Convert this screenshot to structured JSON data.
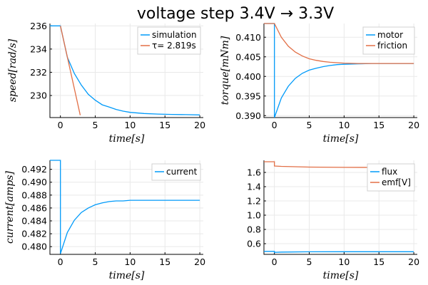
{
  "figure": {
    "title": "voltage step 3.4V → 3.3V"
  },
  "colors": {
    "series1": "#009af9",
    "series2": "#e26f46"
  },
  "chart_data": [
    {
      "type": "line",
      "xlabel": "time[s]",
      "ylabel": "speed[rad/s]",
      "xlim": [
        -1.5,
        20.5
      ],
      "ylim": [
        228.1,
        236.2
      ],
      "xticks": [
        0,
        5,
        10,
        15,
        20
      ],
      "yticks": [
        230,
        232,
        234,
        236
      ],
      "grid": true,
      "legend": "top-right",
      "series": [
        {
          "name": "simulation",
          "color": "#009af9",
          "x": [
            -1.5,
            0,
            1,
            2,
            3,
            4,
            5,
            6,
            7,
            8,
            9,
            10,
            12,
            14,
            16,
            18,
            20
          ],
          "y": [
            236,
            236,
            233.3,
            231.9,
            230.9,
            230.1,
            229.6,
            229.2,
            229.0,
            228.8,
            228.65,
            228.55,
            228.45,
            228.4,
            228.37,
            228.35,
            228.33
          ]
        },
        {
          "name": "τ= 2.819s",
          "color": "#e26f46",
          "x": [
            0,
            2.85
          ],
          "y": [
            236,
            228.3
          ]
        }
      ]
    },
    {
      "type": "line",
      "xlabel": "time[s]",
      "ylabel": "torque[mNm]",
      "xlim": [
        -1.5,
        20.5
      ],
      "ylim": [
        0.3895,
        0.4135
      ],
      "xticks": [
        0,
        5,
        10,
        15,
        20
      ],
      "yticks": [
        0.39,
        0.395,
        0.4,
        0.405,
        0.41
      ],
      "grid": true,
      "legend": "top-right",
      "series": [
        {
          "name": "motor",
          "color": "#009af9",
          "x": [
            -1.5,
            0,
            0,
            1,
            2,
            3,
            4,
            5,
            6,
            7,
            8,
            9,
            10,
            12,
            14,
            16,
            18,
            20
          ],
          "y": [
            0.4135,
            0.4135,
            0.3895,
            0.3945,
            0.3975,
            0.3995,
            0.4008,
            0.4016,
            0.4021,
            0.4025,
            0.4028,
            0.403,
            0.4031,
            0.4032,
            0.4033,
            0.4033,
            0.4033,
            0.4033
          ]
        },
        {
          "name": "friction",
          "color": "#e26f46",
          "x": [
            -1.5,
            0,
            1,
            2,
            3,
            4,
            5,
            6,
            7,
            8,
            9,
            10,
            12,
            14,
            16,
            18,
            20
          ],
          "y": [
            0.4135,
            0.4135,
            0.41,
            0.4077,
            0.4062,
            0.4052,
            0.4045,
            0.4041,
            0.4038,
            0.4036,
            0.4035,
            0.4034,
            0.4033,
            0.4033,
            0.4033,
            0.4033,
            0.4033
          ]
        }
      ]
    },
    {
      "type": "line",
      "xlabel": "time[s]",
      "ylabel": "current[amps]",
      "xlim": [
        -1.5,
        20.5
      ],
      "ylim": [
        0.4788,
        0.4934
      ],
      "xticks": [
        0,
        5,
        10,
        15,
        20
      ],
      "yticks": [
        0.48,
        0.482,
        0.484,
        0.486,
        0.488,
        0.49,
        0.492
      ],
      "grid": true,
      "legend": "top-right",
      "series": [
        {
          "name": "current",
          "color": "#009af9",
          "x": [
            -1.5,
            0,
            0,
            1,
            2,
            3,
            4,
            5,
            6,
            7,
            8,
            9,
            10,
            12,
            14,
            16,
            18,
            20
          ],
          "y": [
            0.4934,
            0.4934,
            0.4789,
            0.4822,
            0.4841,
            0.4853,
            0.486,
            0.4865,
            0.4868,
            0.487,
            0.4871,
            0.4871,
            0.4872,
            0.4872,
            0.4872,
            0.4872,
            0.4872,
            0.4872
          ]
        }
      ]
    },
    {
      "type": "line",
      "xlabel": "time[s]",
      "ylabel": "",
      "xlim": [
        -1.5,
        20.5
      ],
      "ylim": [
        0.45,
        1.77
      ],
      "xticks": [
        0,
        5,
        10,
        15,
        20
      ],
      "yticks": [
        0.6,
        0.8,
        1.0,
        1.2,
        1.4,
        1.6
      ],
      "grid": true,
      "legend": "top-right",
      "series": [
        {
          "name": "flux",
          "color": "#009af9",
          "x": [
            -1.5,
            0,
            0,
            1,
            5,
            10,
            15,
            20
          ],
          "y": [
            0.492,
            0.492,
            0.478,
            0.482,
            0.486,
            0.487,
            0.487,
            0.487
          ]
        },
        {
          "name": "emf[V]",
          "color": "#e26f46",
          "x": [
            -1.5,
            0,
            0,
            1,
            5,
            10,
            15,
            20
          ],
          "y": [
            1.75,
            1.75,
            1.69,
            1.685,
            1.675,
            1.671,
            1.67,
            1.67
          ]
        }
      ]
    }
  ]
}
